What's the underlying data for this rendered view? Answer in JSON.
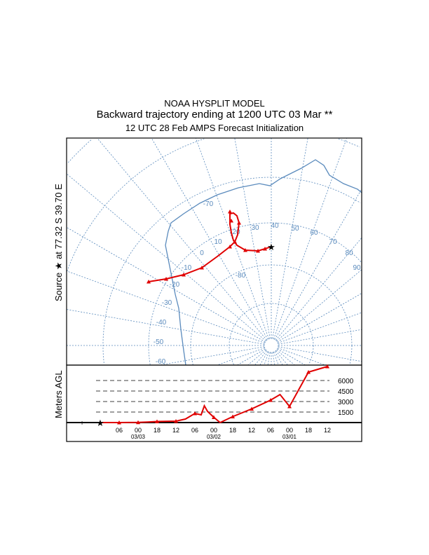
{
  "chart_data": [
    {
      "type": "line",
      "title": "NOAA HYSPLIT MODEL",
      "subtitle": "Backward trajectory ending at 1200 UTC 03 Mar **",
      "subtitle2": "12 UTC 28 Feb    AMPS  Forecast Initialization",
      "ylabel": "Source ★ at   77.32 S   39.70 E",
      "lon_labels": [
        "-70",
        "30",
        "40",
        "50",
        "60",
        "70",
        "80",
        "90"
      ],
      "lat_labels": [
        "20",
        "10",
        "0",
        "-10",
        "-20",
        "-30",
        "-40",
        "-50",
        "-60",
        "-80"
      ],
      "trajectory_color": "#e00000",
      "map_color": "#5b8bbd"
    },
    {
      "type": "line",
      "ylabel": "Meters AGL",
      "yticks": [
        "1500",
        "3000",
        "4500",
        "6000"
      ],
      "xticks": [
        "06",
        "00",
        "18",
        "12",
        "06",
        "00",
        "18",
        "12",
        "06",
        "00",
        "18",
        "12"
      ],
      "date_labels": [
        "03/03",
        "03/02",
        "03/01"
      ],
      "hours_back": [
        0,
        6,
        12,
        15,
        18,
        24,
        27,
        30,
        32,
        33,
        34,
        36,
        38,
        42,
        48,
        54,
        57,
        60,
        66,
        72
      ],
      "height_m": [
        0,
        0,
        20,
        80,
        150,
        200,
        500,
        1300,
        1100,
        2400,
        1600,
        750,
        0,
        850,
        1950,
        3200,
        4000,
        2300,
        7200,
        8000
      ]
    }
  ]
}
